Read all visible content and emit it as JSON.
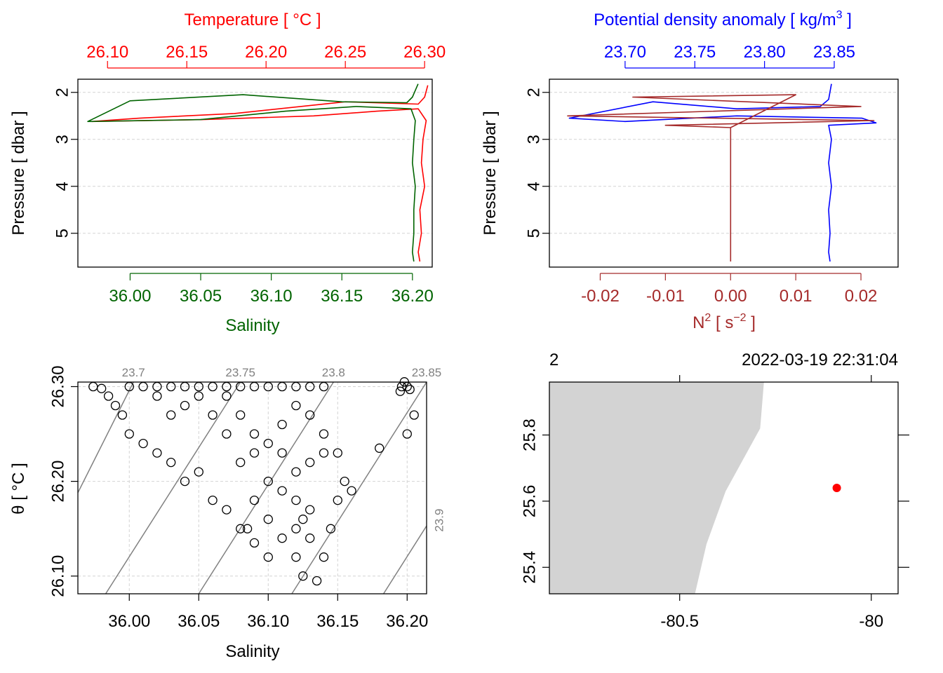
{
  "chart_data": [
    {
      "type": "line",
      "title": "",
      "top_axis": {
        "label": "Temperature [ °C ]",
        "color": "#ff0000",
        "ticks": [
          26.1,
          26.15,
          26.2,
          26.25,
          26.3
        ],
        "tick_labels": [
          "26.10",
          "26.15",
          "26.20",
          "26.25",
          "26.30"
        ],
        "range": [
          26.0813,
          26.3048
        ]
      },
      "bottom_axis": {
        "label": "Salinity",
        "color": "#006400",
        "ticks": [
          36.0,
          36.05,
          36.1,
          36.15,
          36.2
        ],
        "tick_labels": [
          "36.00",
          "36.05",
          "36.10",
          "36.15",
          "36.20"
        ],
        "range": [
          35.963,
          36.214
        ]
      },
      "ylabel": "Pressure [ dbar ]",
      "y_ticks": [
        2,
        3,
        4,
        5
      ],
      "y_tick_labels": [
        "2",
        "3",
        "4",
        "5"
      ],
      "ylim": [
        5.72,
        1.72
      ],
      "grid": true,
      "series": [
        {
          "name": "Temperature",
          "axis": "top",
          "color": "#ff0000",
          "points": [
            [
              26.302,
              1.85
            ],
            [
              26.3,
              2.1
            ],
            [
              26.296,
              2.25
            ],
            [
              26.25,
              2.2
            ],
            [
              26.18,
              2.45
            ],
            [
              26.12,
              2.55
            ],
            [
              26.09,
              2.62
            ],
            [
              26.16,
              2.58
            ],
            [
              26.23,
              2.5
            ],
            [
              26.27,
              2.4
            ],
            [
              26.296,
              2.35
            ],
            [
              26.301,
              2.6
            ],
            [
              26.299,
              3.0
            ],
            [
              26.298,
              3.5
            ],
            [
              26.3,
              4.0
            ],
            [
              26.297,
              4.5
            ],
            [
              26.298,
              5.0
            ],
            [
              26.296,
              5.4
            ],
            [
              26.297,
              5.6
            ]
          ]
        },
        {
          "name": "Salinity",
          "axis": "bottom",
          "color": "#006400",
          "points": [
            [
              36.204,
              1.82
            ],
            [
              36.2,
              2.1
            ],
            [
              36.196,
              2.22
            ],
            [
              36.15,
              2.2
            ],
            [
              36.08,
              2.05
            ],
            [
              36.0,
              2.18
            ],
            [
              35.97,
              2.62
            ],
            [
              36.05,
              2.58
            ],
            [
              36.11,
              2.4
            ],
            [
              36.16,
              2.3
            ],
            [
              36.199,
              2.35
            ],
            [
              36.202,
              2.6
            ],
            [
              36.201,
              3.0
            ],
            [
              36.2,
              3.5
            ],
            [
              36.202,
              4.0
            ],
            [
              36.201,
              4.5
            ],
            [
              36.201,
              5.0
            ],
            [
              36.2,
              5.4
            ],
            [
              36.201,
              5.6
            ]
          ]
        }
      ]
    },
    {
      "type": "line",
      "title": "",
      "top_axis": {
        "label": "Potential density anomaly [ kg/m³ ]",
        "label_main": "Potential density anomaly [ kg/m",
        "label_sup": "3",
        "label_end": " ]",
        "color": "#0000ff",
        "ticks": [
          23.7,
          23.75,
          23.8,
          23.85
        ],
        "tick_labels": [
          "23.70",
          "23.75",
          "23.80",
          "23.85"
        ],
        "range": [
          23.6457,
          23.8958
        ]
      },
      "bottom_axis": {
        "label": "N² [ s⁻² ]",
        "label_main": "N",
        "label_sup": "2",
        "label_mid": " [ s",
        "label_sup2": "−2",
        "label_end": " ]",
        "color": "#a52a2a",
        "ticks": [
          -0.02,
          -0.01,
          0.0,
          0.01,
          0.02
        ],
        "tick_labels": [
          "-0.02",
          "-0.01",
          "0.00",
          "0.01",
          "0.02"
        ],
        "range": [
          -0.0278,
          0.0257
        ]
      },
      "ylabel": "Pressure [ dbar ]",
      "y_ticks": [
        2,
        3,
        4,
        5
      ],
      "y_tick_labels": [
        "2",
        "3",
        "4",
        "5"
      ],
      "ylim": [
        5.72,
        1.72
      ],
      "grid": true,
      "series": [
        {
          "name": "Potential density anomaly",
          "axis": "top",
          "color": "#0000ff",
          "points": [
            [
              23.848,
              1.82
            ],
            [
              23.846,
              2.15
            ],
            [
              23.84,
              2.3
            ],
            [
              23.78,
              2.35
            ],
            [
              23.72,
              2.2
            ],
            [
              23.66,
              2.55
            ],
            [
              23.7,
              2.62
            ],
            [
              23.78,
              2.5
            ],
            [
              23.87,
              2.55
            ],
            [
              23.88,
              2.65
            ],
            [
              23.846,
              2.7
            ],
            [
              23.848,
              3.0
            ],
            [
              23.846,
              3.5
            ],
            [
              23.848,
              4.0
            ],
            [
              23.846,
              4.5
            ],
            [
              23.847,
              5.0
            ],
            [
              23.846,
              5.4
            ],
            [
              23.847,
              5.6
            ]
          ]
        },
        {
          "name": "N²",
          "axis": "bottom",
          "color": "#a52a2a",
          "points": [
            [
              0.0,
              2.75
            ],
            [
              0.01,
              2.05
            ],
            [
              -0.015,
              2.1
            ],
            [
              0.02,
              2.3
            ],
            [
              -0.025,
              2.5
            ],
            [
              0.022,
              2.6
            ],
            [
              -0.01,
              2.7
            ],
            [
              0.0,
              2.75
            ],
            [
              0.0,
              3.0
            ],
            [
              0.0,
              3.5
            ],
            [
              0.0,
              4.0
            ],
            [
              0.0,
              4.5
            ],
            [
              0.0,
              5.0
            ],
            [
              0.0,
              5.6
            ]
          ]
        }
      ]
    },
    {
      "type": "scatter",
      "title": "",
      "xlabel": "Salinity",
      "ylabel": "θ [ °C ]",
      "x_ticks": [
        36.0,
        36.05,
        36.1,
        36.15,
        36.2
      ],
      "x_tick_labels": [
        "36.00",
        "36.05",
        "36.10",
        "36.15",
        "36.20"
      ],
      "y_ticks": [
        26.1,
        26.2,
        26.3
      ],
      "y_tick_labels": [
        "26.10",
        "26.20",
        "26.30"
      ],
      "xlim": [
        35.963,
        36.214
      ],
      "ylim": [
        26.0813,
        26.3048
      ],
      "grid": true,
      "isopycnals": [
        {
          "label": "23.7",
          "points": [
            [
              35.963,
              26.188
            ],
            [
              36.003,
              26.3048
            ]
          ]
        },
        {
          "label": "23.75",
          "points": [
            [
              35.983,
              26.0813
            ],
            [
              36.08,
              26.3048
            ]
          ]
        },
        {
          "label": "23.8",
          "points": [
            [
              36.05,
              26.0813
            ],
            [
              36.147,
              26.3048
            ]
          ]
        },
        {
          "label": "23.85",
          "points": [
            [
              36.117,
              26.0813
            ],
            [
              36.214,
              26.3048
            ]
          ]
        },
        {
          "label": "23.9",
          "points": [
            [
              36.183,
              26.0813
            ],
            [
              36.214,
              26.153
            ]
          ]
        }
      ],
      "points": [
        [
          35.974,
          26.3
        ],
        [
          35.98,
          26.298
        ],
        [
          35.985,
          26.29
        ],
        [
          35.99,
          26.28
        ],
        [
          35.995,
          26.27
        ],
        [
          36.0,
          26.3
        ],
        [
          36.01,
          26.3
        ],
        [
          36.02,
          26.3
        ],
        [
          36.03,
          26.3
        ],
        [
          36.04,
          26.3
        ],
        [
          36.05,
          26.3
        ],
        [
          36.06,
          26.3
        ],
        [
          36.07,
          26.3
        ],
        [
          36.08,
          26.3
        ],
        [
          36.09,
          26.3
        ],
        [
          36.1,
          26.3
        ],
        [
          36.11,
          26.3
        ],
        [
          36.12,
          26.3
        ],
        [
          36.13,
          26.3
        ],
        [
          36.14,
          26.3
        ],
        [
          36.0,
          26.25
        ],
        [
          36.01,
          26.24
        ],
        [
          36.02,
          26.23
        ],
        [
          36.03,
          26.22
        ],
        [
          36.04,
          26.2
        ],
        [
          36.05,
          26.21
        ],
        [
          36.06,
          26.18
        ],
        [
          36.07,
          26.17
        ],
        [
          36.08,
          26.15
        ],
        [
          36.09,
          26.18
        ],
        [
          36.1,
          26.16
        ],
        [
          36.11,
          26.14
        ],
        [
          36.12,
          26.12
        ],
        [
          36.125,
          26.1
        ],
        [
          36.135,
          26.095
        ],
        [
          36.14,
          26.12
        ],
        [
          36.145,
          26.15
        ],
        [
          36.15,
          26.18
        ],
        [
          36.155,
          26.2
        ],
        [
          36.16,
          26.19
        ],
        [
          36.15,
          26.23
        ],
        [
          36.14,
          26.25
        ],
        [
          36.13,
          26.27
        ],
        [
          36.12,
          26.28
        ],
        [
          36.11,
          26.26
        ],
        [
          36.1,
          26.24
        ],
        [
          36.09,
          26.23
        ],
        [
          36.08,
          26.22
        ],
        [
          36.07,
          26.25
        ],
        [
          36.06,
          26.27
        ],
        [
          36.05,
          26.29
        ],
        [
          36.04,
          26.28
        ],
        [
          36.03,
          26.27
        ],
        [
          36.02,
          26.29
        ],
        [
          36.1,
          26.2
        ],
        [
          36.11,
          26.19
        ],
        [
          36.12,
          26.18
        ],
        [
          36.13,
          26.17
        ],
        [
          36.12,
          26.21
        ],
        [
          36.13,
          26.22
        ],
        [
          36.14,
          26.23
        ],
        [
          36.11,
          26.23
        ],
        [
          36.09,
          26.25
        ],
        [
          36.08,
          26.27
        ],
        [
          36.07,
          26.29
        ],
        [
          36.18,
          26.235
        ],
        [
          36.2,
          26.25
        ],
        [
          36.205,
          26.27
        ],
        [
          36.2,
          26.3
        ],
        [
          36.196,
          26.3
        ],
        [
          36.198,
          26.305
        ],
        [
          36.202,
          26.297
        ],
        [
          36.195,
          26.295
        ],
        [
          36.12,
          26.15
        ],
        [
          36.125,
          26.16
        ],
        [
          36.13,
          26.14
        ],
        [
          36.1,
          26.12
        ],
        [
          36.09,
          26.135
        ],
        [
          36.085,
          26.15
        ]
      ]
    },
    {
      "type": "map",
      "title": "",
      "top_left_label": "2",
      "top_right_label": "2022-03-19 22:31:04",
      "x_ticks": [
        -80.5,
        -80
      ],
      "x_tick_labels": [
        "-80.5",
        "-80"
      ],
      "y_ticks": [
        25.4,
        25.6,
        25.8
      ],
      "y_tick_labels": [
        "25.4",
        "25.6",
        "25.8"
      ],
      "xlim": [
        -80.84,
        -79.93
      ],
      "ylim": [
        25.32,
        25.96
      ],
      "land_color": "#d3d3d3",
      "marker_color": "#ff0000",
      "station": [
        -80.09,
        25.64
      ],
      "land_outline": [
        [
          -80.84,
          25.96
        ],
        [
          -80.28,
          25.96
        ],
        [
          -80.29,
          25.82
        ],
        [
          -80.38,
          25.63
        ],
        [
          -80.43,
          25.47
        ],
        [
          -80.46,
          25.32
        ],
        [
          -80.84,
          25.32
        ]
      ]
    }
  ]
}
